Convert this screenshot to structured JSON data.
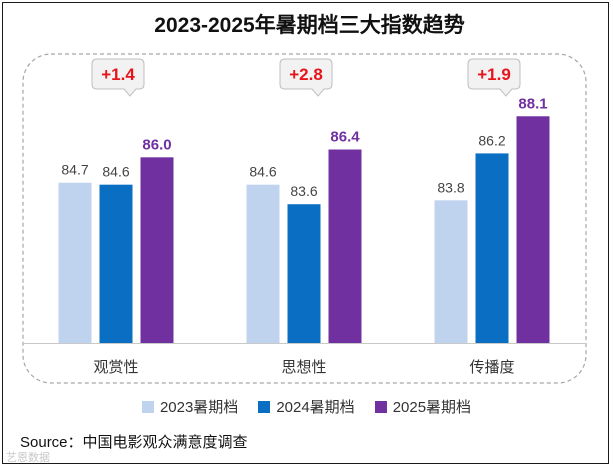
{
  "chart_data": {
    "type": "bar",
    "title": "2023-2025年暑期档三大指数趋势",
    "categories": [
      "观赏性",
      "思想性",
      "传播度"
    ],
    "series": [
      {
        "name": "2023暑期档",
        "color": "#c0d3ee",
        "values": [
          84.7,
          84.6,
          83.8
        ]
      },
      {
        "name": "2024暑期档",
        "color": "#0a6fc2",
        "values": [
          84.6,
          83.6,
          86.2
        ]
      },
      {
        "name": "2025暑期档",
        "color": "#7030a0",
        "values": [
          86.0,
          86.4,
          88.1
        ]
      }
    ],
    "annotations": [
      "+1.4",
      "+2.8",
      "+1.9"
    ],
    "value_labels": [
      [
        "84.7",
        "84.6",
        "83.8"
      ],
      [
        "84.6",
        "83.6",
        "86.2"
      ],
      [
        "86.0",
        "86.4",
        "88.1"
      ]
    ],
    "ylim": [
      76.5,
      89.7
    ],
    "xlabel": "",
    "ylabel": "",
    "legend_position": "bottom"
  },
  "source": "Source：中国电影观众满意度调查",
  "watermark": "艺恩数据",
  "colors": {
    "highlight_label": "#7030a0",
    "annotation_text": "#e8141b",
    "annotation_bubble": "#f2f2f2",
    "annotation_border": "#bfbfbf",
    "panel_border": "#a6a6a6"
  }
}
